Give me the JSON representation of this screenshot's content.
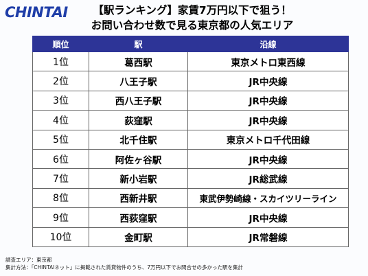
{
  "header": {
    "logo_text": "CHINTAI",
    "title_line1": "【駅ランキング】家賃7万円以下で狙う！",
    "title_line2": "お問い合わせ数で見る東京都の人気エリア",
    "accent_color": "#2d3497",
    "logo_color": "#1f3ea8"
  },
  "table": {
    "headers": {
      "rank": "順位",
      "station": "駅",
      "line": "沿線"
    },
    "rows": [
      {
        "rank": "1位",
        "station": "葛西駅",
        "line": "東京メトロ東西線"
      },
      {
        "rank": "2位",
        "station": "八王子駅",
        "line": "JR中央線"
      },
      {
        "rank": "3位",
        "station": "西八王子駅",
        "line": "JR中央線"
      },
      {
        "rank": "4位",
        "station": "荻窪駅",
        "line": "JR中央線"
      },
      {
        "rank": "5位",
        "station": "北千住駅",
        "line": "東京メトロ千代田線"
      },
      {
        "rank": "6位",
        "station": "阿佐ヶ谷駅",
        "line": "JR中央線"
      },
      {
        "rank": "7位",
        "station": "新小岩駅",
        "line": "JR総武線"
      },
      {
        "rank": "8位",
        "station": "西新井駅",
        "line": "東武伊勢崎線・スカイツリーライン"
      },
      {
        "rank": "9位",
        "station": "西荻窪駅",
        "line": "JR中央線"
      },
      {
        "rank": "10位",
        "station": "金町駅",
        "line": "JR常磐線"
      }
    ]
  },
  "notes": {
    "area": "調査エリア：東京都",
    "method": "集計方法：「CHINTAIネット」に掲載された賃貸物件のうち、7万円以下でお問合せの多かった駅を集計"
  }
}
